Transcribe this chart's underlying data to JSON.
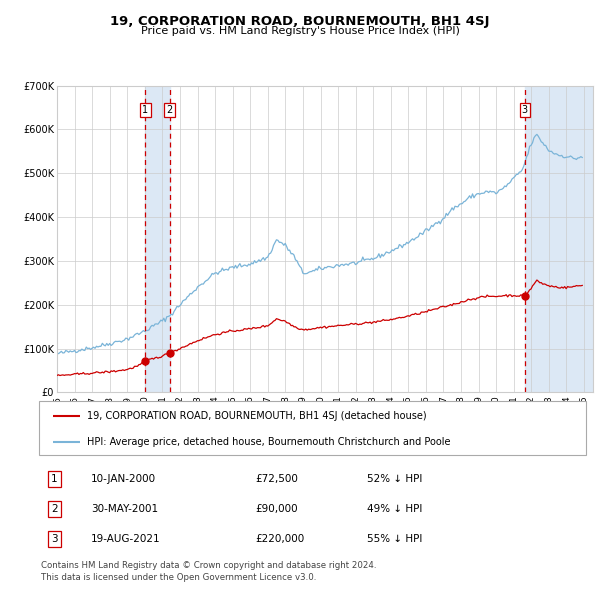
{
  "title": "19, CORPORATION ROAD, BOURNEMOUTH, BH1 4SJ",
  "subtitle": "Price paid vs. HM Land Registry's House Price Index (HPI)",
  "legend_line1": "19, CORPORATION ROAD, BOURNEMOUTH, BH1 4SJ (detached house)",
  "legend_line2": "HPI: Average price, detached house, Bournemouth Christchurch and Poole",
  "footer1": "Contains HM Land Registry data © Crown copyright and database right 2024.",
  "footer2": "This data is licensed under the Open Government Licence v3.0.",
  "transactions": [
    {
      "num": 1,
      "date": "10-JAN-2000",
      "price": "£72,500",
      "pct": "52% ↓ HPI"
    },
    {
      "num": 2,
      "date": "30-MAY-2001",
      "price": "£90,000",
      "pct": "49% ↓ HPI"
    },
    {
      "num": 3,
      "date": "19-AUG-2021",
      "price": "£220,000",
      "pct": "55% ↓ HPI"
    }
  ],
  "sale_dates_year": [
    2000.03,
    2001.41,
    2021.63
  ],
  "sale_prices": [
    72500,
    90000,
    220000
  ],
  "hpi_color": "#7ab4d8",
  "price_color": "#cc0000",
  "shade_color": "#dce8f5",
  "dashed_color": "#cc0000",
  "ylim": [
    0,
    700000
  ],
  "yticks": [
    0,
    100000,
    200000,
    300000,
    400000,
    500000,
    600000,
    700000
  ],
  "xlim_start": 1995.0,
  "xlim_end": 2025.5,
  "background_color": "#ffffff",
  "grid_color": "#cccccc",
  "font": "DejaVu Sans"
}
